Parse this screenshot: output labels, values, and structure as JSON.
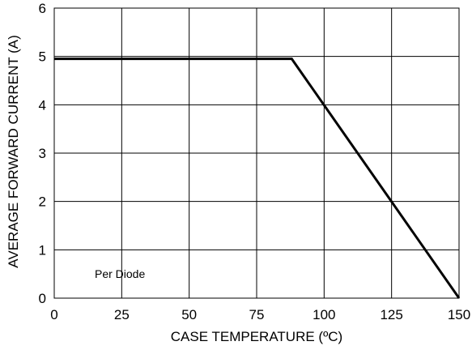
{
  "chart_data": {
    "type": "line",
    "xlabel": "CASE TEMPERATURE (ºC)",
    "ylabel": "AVERAGE FORWARD CURRENT (A)",
    "xlim": [
      0,
      150
    ],
    "ylim": [
      0,
      6
    ],
    "xticks": [
      0,
      25,
      50,
      75,
      100,
      125,
      150
    ],
    "yticks": [
      0,
      1,
      2,
      3,
      4,
      5,
      6
    ],
    "grid": true,
    "series": [
      {
        "x": [
          0,
          88,
          150
        ],
        "y": [
          4.95,
          4.95,
          0
        ]
      }
    ],
    "annotations": [
      {
        "text": "Per Diode",
        "x": 15,
        "y": 0.5
      }
    ]
  }
}
